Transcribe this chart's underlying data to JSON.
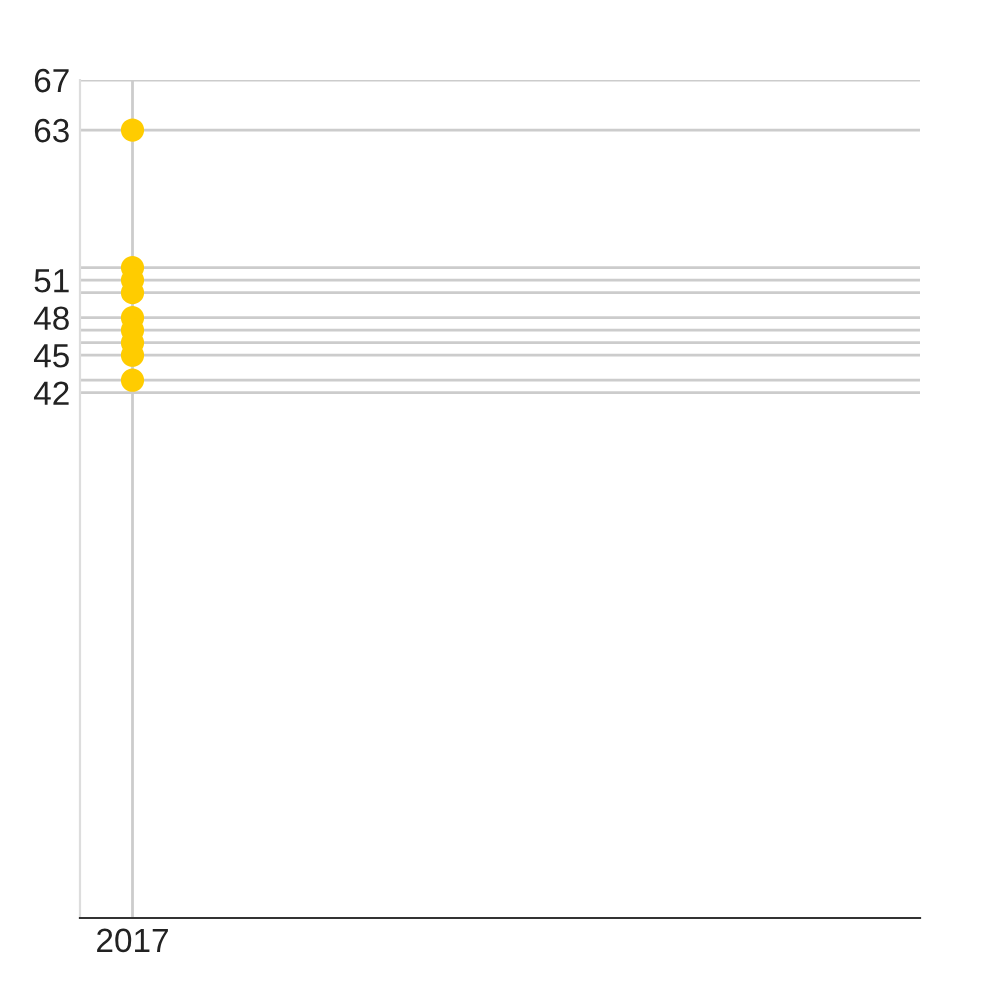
{
  "chart_data": {
    "type": "scatter",
    "categories": [
      "2017"
    ],
    "series": [
      {
        "color": "#ffcc00",
        "values": [
          63
        ]
      },
      {
        "color": "#ffcc00",
        "values": [
          52
        ]
      },
      {
        "color": "#ffcc00",
        "values": [
          51
        ]
      },
      {
        "color": "#ffcc00",
        "values": [
          50
        ]
      },
      {
        "color": "#ffcc00",
        "values": [
          48
        ]
      },
      {
        "color": "#ffcc00",
        "values": [
          47
        ]
      },
      {
        "color": "#ffcc00",
        "values": [
          46
        ]
      },
      {
        "color": "#ffcc00",
        "values": [
          45
        ]
      },
      {
        "color": "#ffcc00",
        "values": [
          43
        ]
      }
    ],
    "ylim": [
      0,
      67
    ],
    "yticks": [
      {
        "value": 42,
        "label": "42"
      },
      {
        "value": 43,
        "label": null
      },
      {
        "value": 45,
        "label": "45"
      },
      {
        "value": 46,
        "label": null
      },
      {
        "value": 47,
        "label": null
      },
      {
        "value": 48,
        "label": "48"
      },
      {
        "value": 50,
        "label": null
      },
      {
        "value": 51,
        "label": "51"
      },
      {
        "value": 52,
        "label": null
      },
      {
        "value": 63,
        "label": "63"
      },
      {
        "value": 67,
        "label": "67"
      }
    ],
    "grid": true,
    "marker": "circle"
  }
}
